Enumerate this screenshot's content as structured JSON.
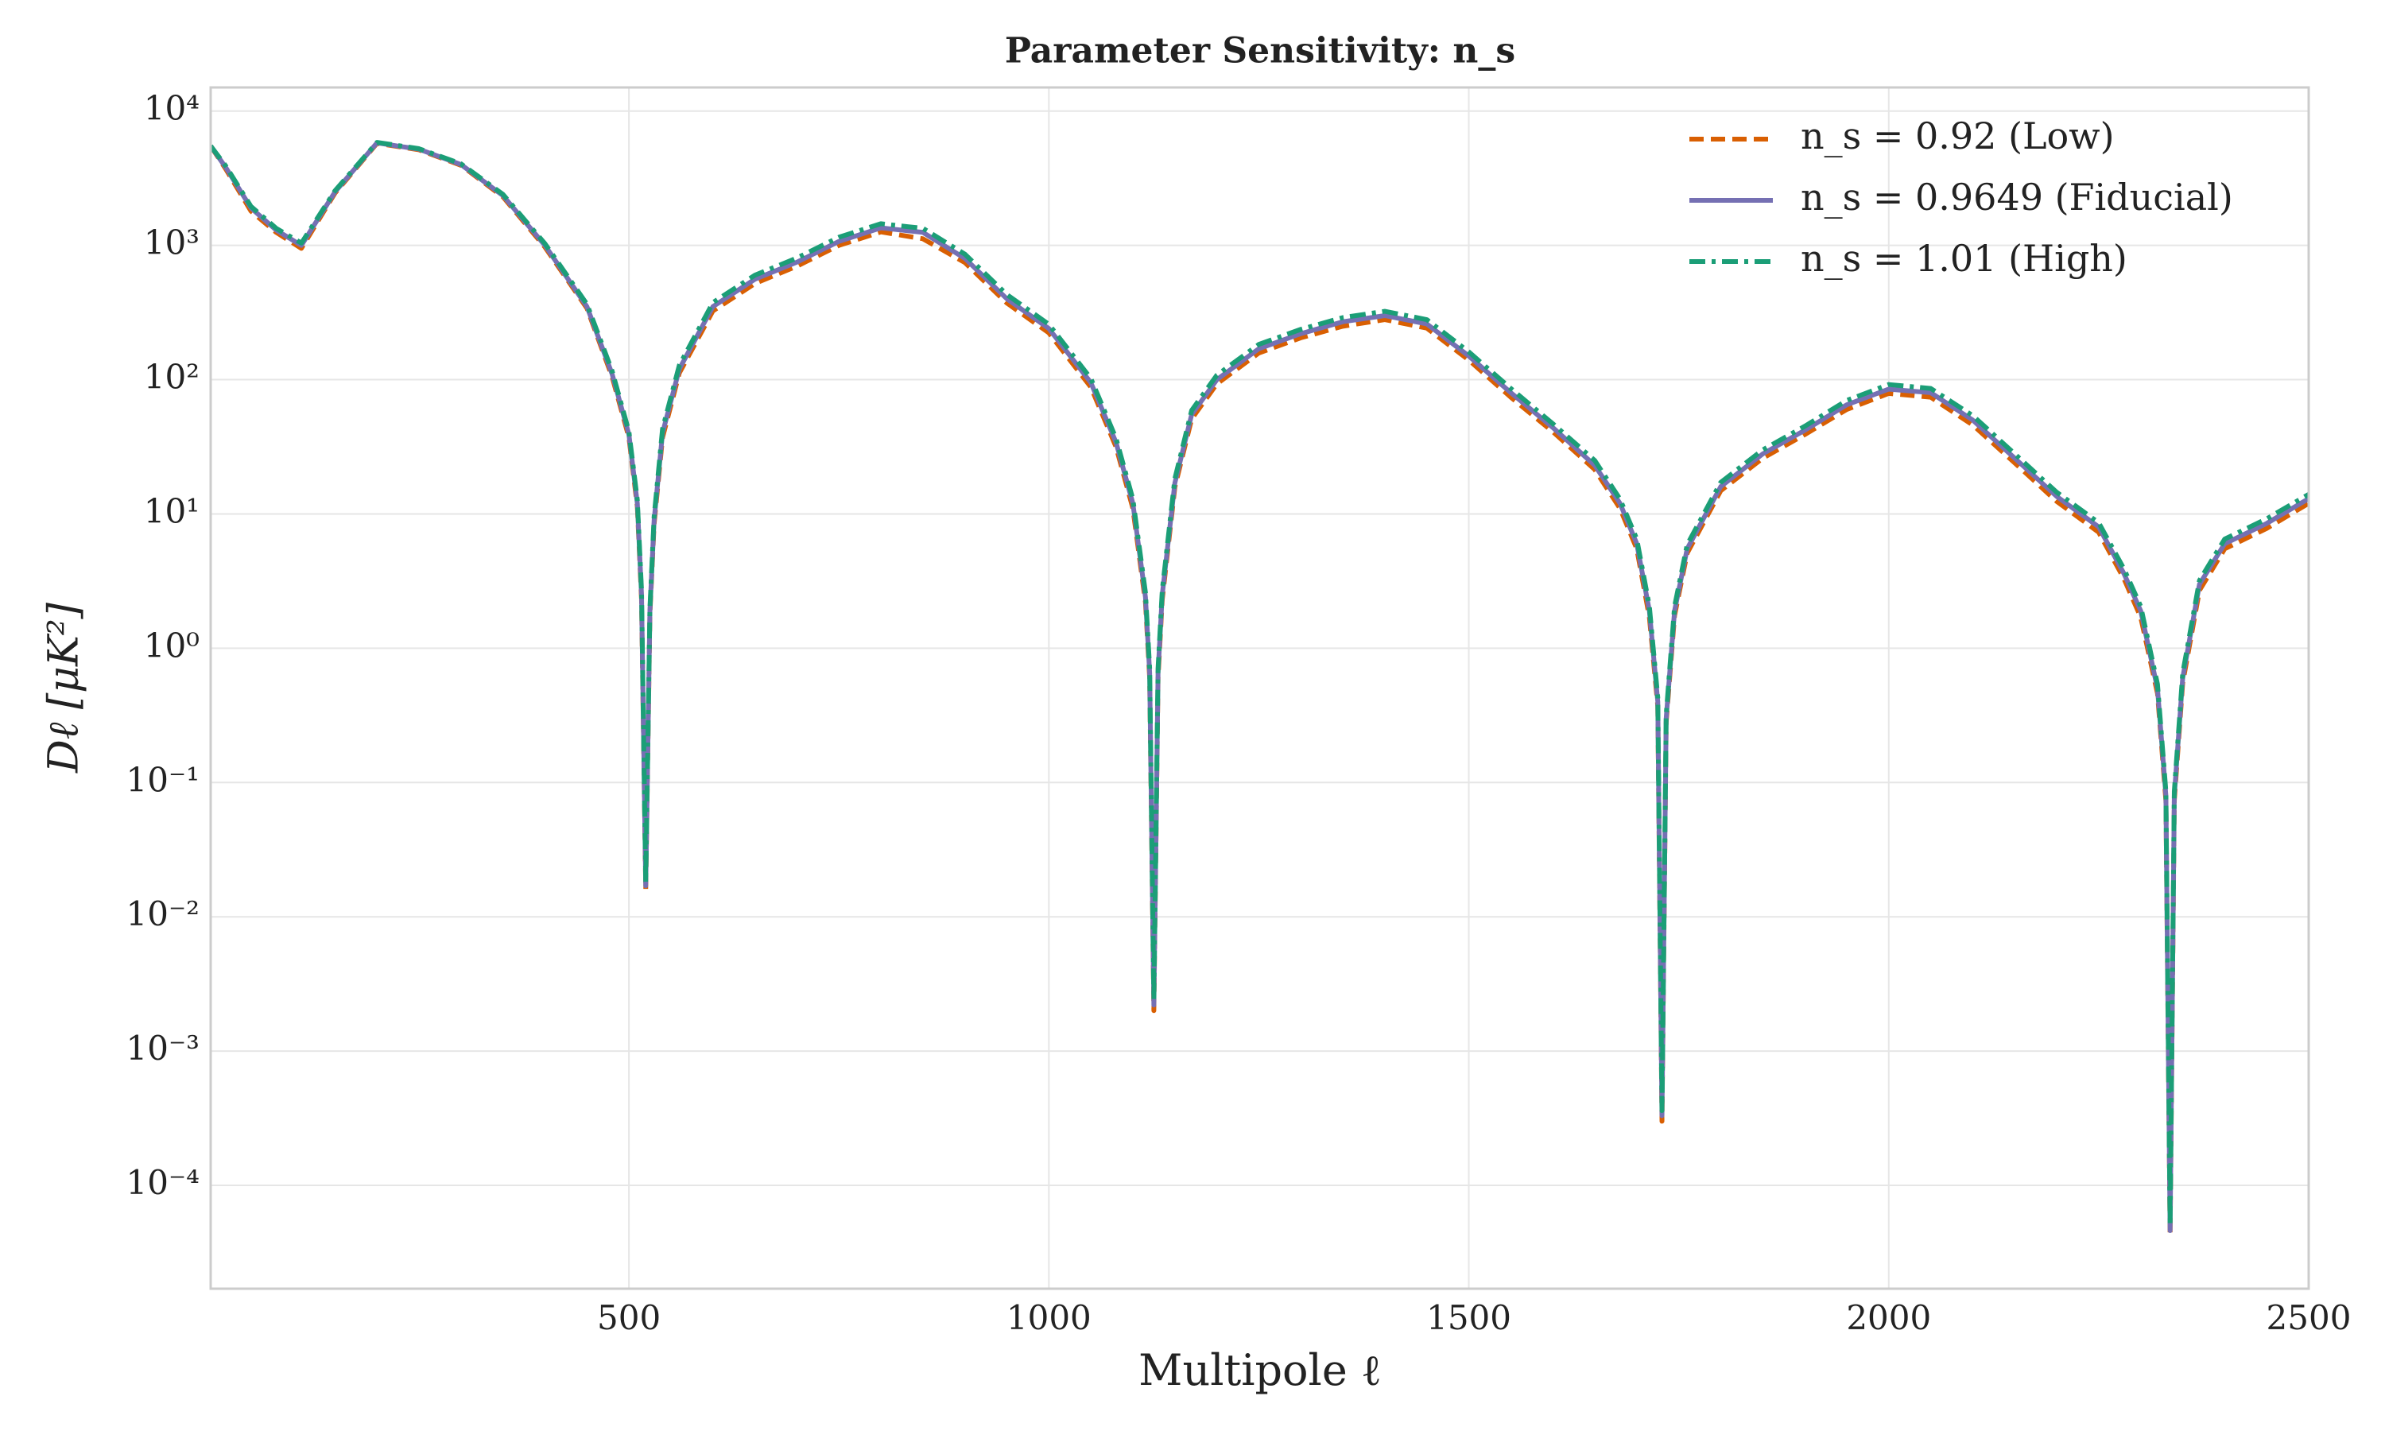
{
  "chart_data": {
    "type": "line",
    "title": "Parameter Sensitivity: n_s",
    "xlabel": "Multipole ℓ",
    "ylabel": "Dℓ [μK²]",
    "yscale": "log",
    "grid": true,
    "legend": "upper right",
    "xlim": [
      2,
      2500
    ],
    "xticks": [
      500,
      1000,
      1500,
      2000,
      2500
    ],
    "ylim": [
      1.7e-05,
      15000
    ],
    "yticks": [
      {
        "value": 0.0001,
        "label": "10⁻⁴"
      },
      {
        "value": 0.001,
        "label": "10⁻³"
      },
      {
        "value": 0.01,
        "label": "10⁻²"
      },
      {
        "value": 0.1,
        "label": "10⁻¹"
      },
      {
        "value": 1,
        "label": "10⁰"
      },
      {
        "value": 10,
        "label": "10¹"
      },
      {
        "value": 100,
        "label": "10²"
      },
      {
        "value": 1000,
        "label": "10³"
      },
      {
        "value": 10000,
        "label": "10⁴"
      }
    ],
    "x": [
      2,
      20,
      50,
      80,
      110,
      150,
      200,
      250,
      300,
      350,
      400,
      450,
      480,
      500,
      510,
      515,
      520,
      525,
      530,
      540,
      560,
      600,
      650,
      700,
      750,
      800,
      850,
      900,
      950,
      1000,
      1050,
      1080,
      1100,
      1115,
      1120,
      1125,
      1130,
      1135,
      1150,
      1170,
      1200,
      1250,
      1300,
      1350,
      1400,
      1450,
      1500,
      1550,
      1600,
      1650,
      1680,
      1700,
      1715,
      1725,
      1730,
      1735,
      1745,
      1760,
      1800,
      1850,
      1900,
      1950,
      2000,
      2050,
      2100,
      2150,
      2200,
      2250,
      2280,
      2300,
      2320,
      2330,
      2335,
      2340,
      2350,
      2370,
      2400,
      2450,
      2500
    ],
    "series": [
      {
        "name": "n_s = 0.92 (Low)",
        "color": "#d95f02",
        "dash": "dashed",
        "values": [
          5500,
          3700,
          1800,
          1250,
          950,
          2450,
          5750,
          5150,
          3950,
          2300,
          970,
          340,
          105,
          37,
          11.3,
          2.3,
          0.016,
          1.8,
          8.4,
          37,
          112,
          325,
          520,
          700,
          1000,
          1260,
          1120,
          745,
          372,
          223,
          88,
          31.5,
          11,
          2.2,
          0.6,
          0.002,
          0.6,
          2.3,
          15.8,
          51,
          93,
          158,
          205,
          250,
          280,
          242,
          140,
          74,
          41,
          21.4,
          11,
          5.5,
          1.7,
          0.37,
          0.0003,
          0.28,
          1.75,
          5.1,
          14.9,
          26,
          39,
          60,
          79,
          74,
          46,
          24,
          12.4,
          7.3,
          3.3,
          1.7,
          0.46,
          0.073,
          4.2e-05,
          0.073,
          0.55,
          2.7,
          5.5,
          7.8,
          12
        ]
      },
      {
        "name": "n_s = 0.9649 (Fiducial)",
        "color": "#7570b3",
        "dash": "solid",
        "values": [
          5500,
          3800,
          1900,
          1300,
          1000,
          2500,
          5800,
          5200,
          4000,
          2350,
          1000,
          350,
          110,
          39,
          12,
          2.5,
          0.017,
          1.9,
          9,
          40,
          120,
          350,
          560,
          750,
          1070,
          1350,
          1250,
          800,
          400,
          240,
          95,
          34,
          12,
          2.4,
          0.66,
          0.0022,
          0.66,
          2.5,
          17,
          55,
          100,
          170,
          220,
          270,
          300,
          260,
          150,
          80,
          44,
          23,
          12,
          6,
          1.9,
          0.4,
          0.00033,
          0.3,
          1.9,
          5.5,
          16,
          28,
          42,
          65,
          85,
          80,
          50,
          26,
          13.5,
          8,
          3.6,
          1.9,
          0.5,
          0.08,
          4.6e-05,
          0.08,
          0.6,
          3,
          6,
          8.5,
          13
        ]
      },
      {
        "name": "n_s = 1.01 (High)",
        "color": "#1b9e77",
        "dash": "dashdot",
        "values": [
          5500,
          3900,
          1950,
          1340,
          1040,
          2550,
          5850,
          5250,
          4050,
          2400,
          1030,
          365,
          116,
          41,
          12.7,
          2.7,
          0.018,
          2,
          9.6,
          43,
          128,
          375,
          600,
          805,
          1150,
          1450,
          1340,
          860,
          430,
          258,
          102,
          36.5,
          12.9,
          2.6,
          0.71,
          0.0024,
          0.71,
          2.7,
          18.3,
          59,
          108,
          183,
          237,
          290,
          323,
          280,
          161,
          86,
          47,
          25,
          12.9,
          6.5,
          2.05,
          0.43,
          0.00036,
          0.32,
          2.05,
          5.9,
          17.2,
          30,
          45,
          70,
          92,
          86,
          54,
          28,
          14.5,
          8.6,
          3.9,
          2.05,
          0.54,
          0.086,
          5e-05,
          0.086,
          0.65,
          3.2,
          6.5,
          9.2,
          14
        ]
      }
    ]
  }
}
